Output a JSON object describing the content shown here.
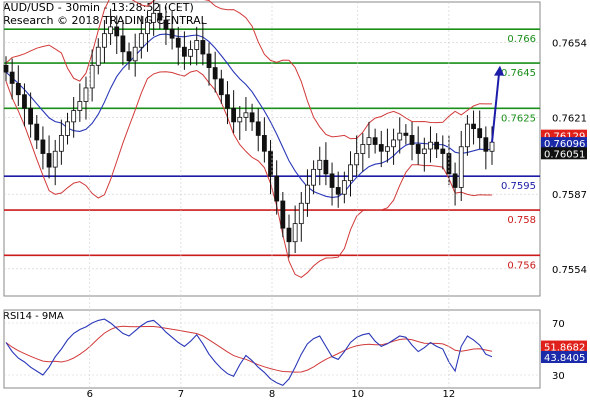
{
  "header": {
    "title": "AUD/USD - 30min - 13:28:52 (CET)",
    "subtitle": "Research © 2018 TRADING CENTRAL"
  },
  "rsi": {
    "label": "RSI14 - 9MA"
  },
  "colors": {
    "green": "#1a8f1a",
    "blue": "#1c1ca8",
    "red": "#cc1b1b",
    "bollinger": "#d23a3a",
    "ma_blue": "#2a38b8",
    "candle": "#111111",
    "grid": "#cfcfcf",
    "badge_red": "#e0201a",
    "badge_blue": "#1a2aa8",
    "badge_black": "#111111"
  },
  "chart_data": {
    "type": "candlestick",
    "ylim": [
      0.7542,
      0.7672
    ],
    "y_ticks": [
      "0.7654",
      "0.7621",
      "0.7587",
      "0.7554"
    ],
    "x_tick_labels": [
      "6",
      "7",
      "8",
      "10",
      "12"
    ],
    "levels": [
      {
        "value": 0.766,
        "label": "0.766",
        "color": "green"
      },
      {
        "value": 0.7645,
        "label": "0.7645",
        "color": "green"
      },
      {
        "value": 0.7625,
        "label": "0.7625",
        "color": "green"
      },
      {
        "value": 0.7595,
        "label": "0.7595",
        "color": "blue"
      },
      {
        "value": 0.758,
        "label": "0.758",
        "color": "red"
      },
      {
        "value": 0.756,
        "label": "0.756",
        "color": "red"
      }
    ],
    "price_badges": [
      {
        "value": 0.76129,
        "label": "0.76129",
        "color": "badge_red"
      },
      {
        "value": 0.76096,
        "label": "0.76096",
        "color": "badge_blue"
      },
      {
        "value": 0.76051,
        "label": "0.76051",
        "color": "badge_black"
      }
    ],
    "close_series": [
      0.7641,
      0.7636,
      0.7631,
      0.7625,
      0.7618,
      0.7611,
      0.7605,
      0.7599,
      0.7606,
      0.7613,
      0.7619,
      0.7624,
      0.7628,
      0.7634,
      0.7644,
      0.7652,
      0.7658,
      0.7661,
      0.7657,
      0.765,
      0.7646,
      0.7652,
      0.7658,
      0.7663,
      0.7667,
      0.7664,
      0.766,
      0.7656,
      0.7652,
      0.7648,
      0.7651,
      0.7655,
      0.7649,
      0.7643,
      0.7638,
      0.7631,
      0.7625,
      0.7619,
      0.7621,
      0.7623,
      0.7619,
      0.7613,
      0.7606,
      0.7595,
      0.7584,
      0.7572,
      0.7566,
      0.7574,
      0.7583,
      0.7591,
      0.7598,
      0.7602,
      0.7596,
      0.759,
      0.7587,
      0.7593,
      0.76,
      0.7605,
      0.7609,
      0.7612,
      0.7609,
      0.7606,
      0.7608,
      0.7611,
      0.7614,
      0.7613,
      0.7609,
      0.7605,
      0.7607,
      0.761,
      0.7607,
      0.7605,
      0.7596,
      0.759,
      0.7608,
      0.7618,
      0.7616,
      0.7612,
      0.7606,
      0.761
    ],
    "projection": {
      "from_value": 0.761,
      "to_value": 0.7643
    },
    "rsi_axis": {
      "ylim": [
        20,
        80
      ],
      "ticks": [
        {
          "value": 70,
          "label": "70"
        },
        {
          "value": 30,
          "label": "30"
        }
      ]
    },
    "rsi_badges": [
      {
        "value": 51.8682,
        "label": "51.8682",
        "color": "badge_red"
      },
      {
        "value": 43.8405,
        "label": "43.8405",
        "color": "badge_blue"
      }
    ],
    "rsi_values": [
      55,
      48,
      43,
      40,
      36,
      33,
      30,
      36,
      44,
      50,
      57,
      62,
      65,
      67,
      70,
      72,
      73,
      70,
      66,
      62,
      60,
      64,
      68,
      71,
      72,
      68,
      63,
      59,
      55,
      52,
      56,
      61,
      54,
      46,
      40,
      35,
      31,
      29,
      38,
      45,
      41,
      36,
      32,
      27,
      24,
      22,
      27,
      36,
      46,
      54,
      58,
      60,
      52,
      44,
      42,
      48,
      55,
      59,
      61,
      62,
      56,
      52,
      54,
      57,
      60,
      59,
      53,
      48,
      51,
      55,
      52,
      50,
      40,
      33,
      52,
      60,
      57,
      53,
      46,
      44
    ]
  }
}
